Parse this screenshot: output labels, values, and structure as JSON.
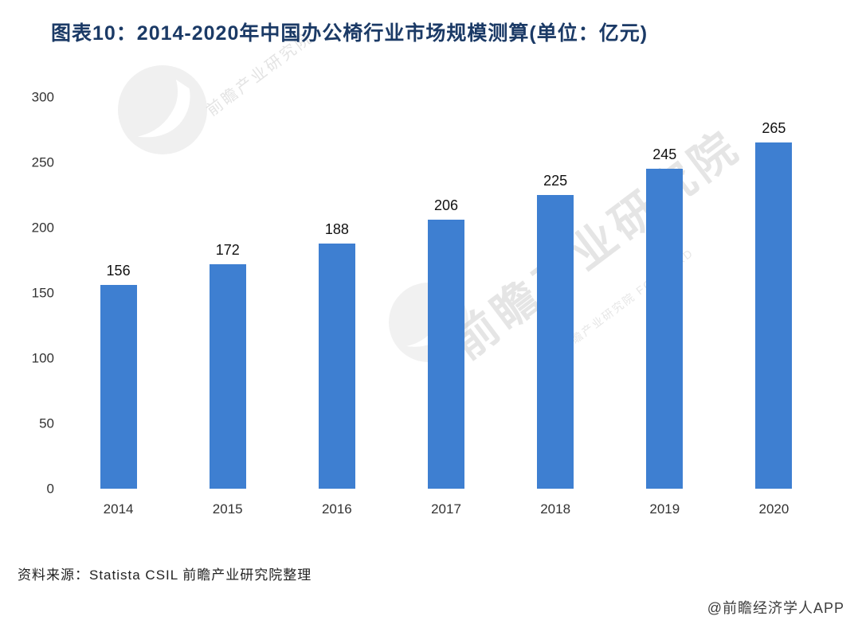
{
  "title": "图表10：2014-2020年中国办公椅行业市场规模测算(单位：亿元)",
  "chart_data": {
    "type": "bar",
    "title": "图表10：2014-2020年中国办公椅行业市场规模测算(单位：亿元)",
    "categories": [
      "2014",
      "2015",
      "2016",
      "2017",
      "2018",
      "2019",
      "2020"
    ],
    "values": [
      156,
      172,
      188,
      206,
      225,
      245,
      265
    ],
    "xlabel": "",
    "ylabel": "",
    "ylim": [
      0,
      300
    ],
    "yticks": [
      0,
      50,
      100,
      150,
      200,
      250,
      300
    ],
    "bar_color": "#3e7fd1",
    "grid": false,
    "legend": false,
    "data_labels": true
  },
  "footer": {
    "source": "资料来源：Statista CSIL 前瞻产业研究院整理",
    "brand": "@前瞻经济学人APP"
  },
  "watermark": {
    "big_text": "前瞻产业研究院",
    "small_text_1": "前瞻产业研究院",
    "small_text_2": "前瞻产业研究院 FORWARD"
  },
  "colors": {
    "title": "#1b3a66",
    "bar": "#3e7fd1",
    "axis_text": "#333333",
    "watermark": "#c7c7c7"
  }
}
